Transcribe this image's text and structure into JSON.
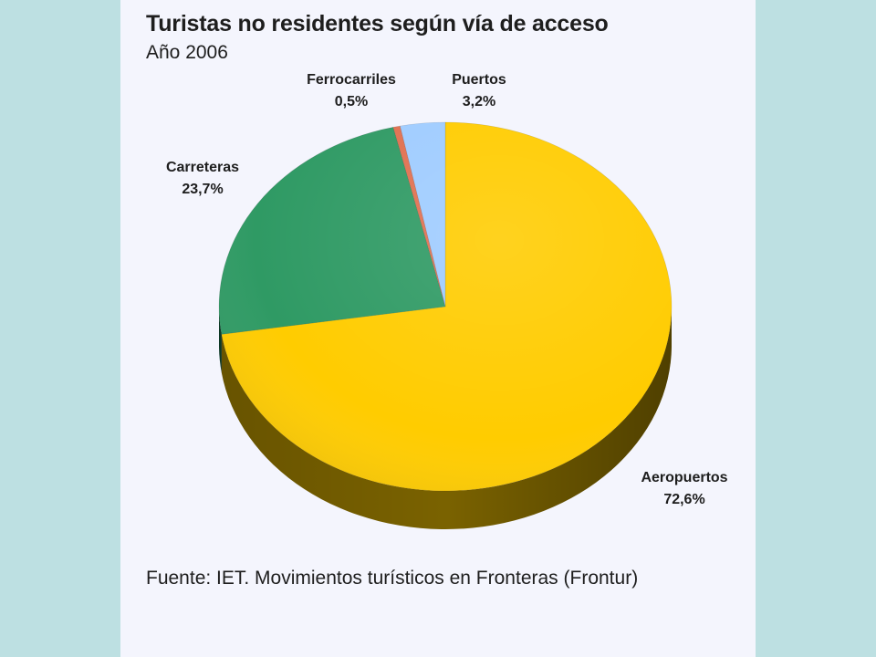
{
  "title": "Turistas no residentes según vía de acceso",
  "subtitle": "Año 2006",
  "source": "Fuente: IET. Movimientos turísticos en Fronteras (Frontur)",
  "chart_data": {
    "type": "pie",
    "title": "Turistas no residentes según vía de acceso",
    "subtitle": "Año 2006",
    "unit": "%",
    "slices": [
      {
        "label": "Aeropuertos",
        "value": 72.6,
        "value_label": "72,6%",
        "color": "#ffcc00",
        "dark": "#7a6200"
      },
      {
        "label": "Carreteras",
        "value": 23.7,
        "value_label": "23,7%",
        "color": "#2f9a64",
        "dark": "#0e3d28"
      },
      {
        "label": "Ferrocarriles",
        "value": 0.5,
        "value_label": "0,5%",
        "color": "#e07050",
        "dark": "#7a3020"
      },
      {
        "label": "Puertos",
        "value": 3.2,
        "value_label": "3,2%",
        "color": "#9fccff",
        "dark": "#3f6f9f"
      }
    ]
  }
}
